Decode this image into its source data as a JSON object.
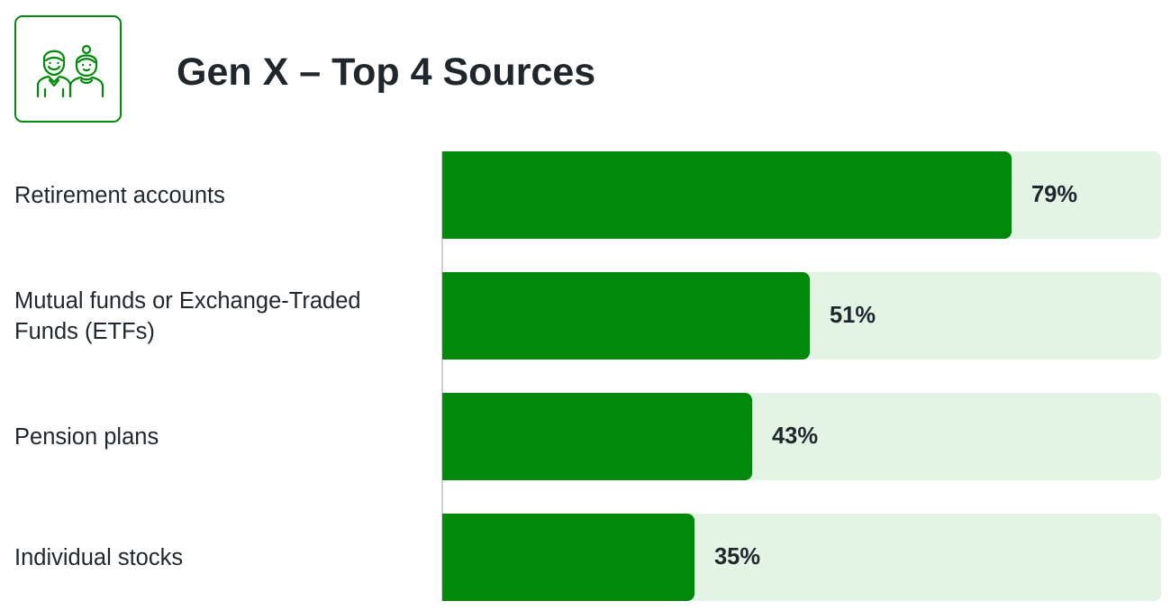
{
  "header": {
    "title": "Gen X – Top 4 Sources",
    "icon": "couple-people-icon",
    "icon_color": "#008a0a"
  },
  "colors": {
    "bar": "#02880b",
    "track": "#e3f3e4",
    "text": "#1f272d"
  },
  "chart_data": {
    "type": "bar",
    "orientation": "horizontal",
    "title": "Gen X – Top 4 Sources",
    "categories": [
      "Retirement accounts",
      "Mutual funds or Exchange-Traded Funds (ETFs)",
      "Pension plans",
      "Individual stocks"
    ],
    "values": [
      79,
      51,
      43,
      35
    ],
    "value_labels": [
      "79%",
      "51%",
      "43%",
      "35%"
    ],
    "unit": "%",
    "xlim": [
      0,
      100
    ],
    "grid": false,
    "legend": "none"
  }
}
